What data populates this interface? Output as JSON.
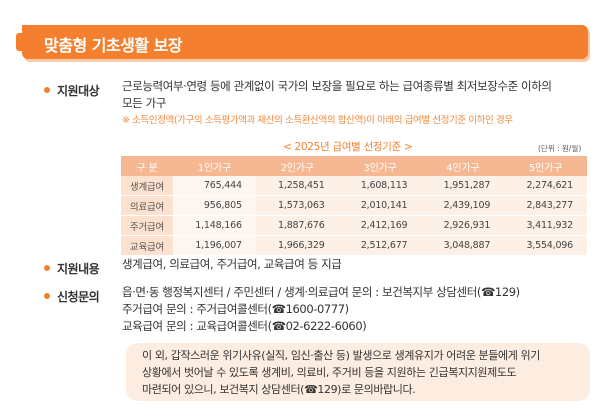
{
  "header": {
    "title": "맞춤형 기초생활 보장"
  },
  "eligibility": {
    "label": "지원대상",
    "text_line1": "근로능력여부·연령 등에 관계없이 국가의 보장을 필요로 하는 급여종류별 최저보장수준 이하의",
    "text_line2": "모든 가구",
    "note": "※ 소득인정액(가구의 소득평가액과 재산의 소득환산액의 합산액)이 아래의 급여별 선정기준 이하인 경우"
  },
  "table": {
    "caption": "< 2025년 급여별 선정기준 >",
    "unit": "(단위 : 원/월)",
    "headers": [
      "구 분",
      "1인가구",
      "2인가구",
      "3인가구",
      "4인가구",
      "5인가구"
    ],
    "rows": [
      {
        "category": "생계급여",
        "values": [
          "765,444",
          "1,258,451",
          "1,608,113",
          "1,951,287",
          "2,274,621"
        ]
      },
      {
        "category": "의료급여",
        "values": [
          "956,805",
          "1,573,063",
          "2,010,141",
          "2,439,109",
          "2,843,277"
        ]
      },
      {
        "category": "주거급여",
        "values": [
          "1,148,166",
          "1,887,676",
          "2,412,169",
          "2,926,931",
          "3,411,932"
        ]
      },
      {
        "category": "교육급여",
        "values": [
          "1,196,007",
          "1,966,329",
          "2,512,677",
          "3,048,887",
          "3,554,096"
        ]
      }
    ]
  },
  "support": {
    "label": "지원내용",
    "text": "생계급여, 의료급여, 주거급여, 교육급여 등 지급"
  },
  "inquiry": {
    "label": "신청문의",
    "line1": "읍·면·동 행정복지센터 / 주민센터 / 생계·의료급여 문의 : 보건복지부 상담센터(☎129)",
    "line2": "주거급여 문의 : 주거급여콜센터(☎1600-0777)",
    "line3": "교육급여 문의 : 교육급여콜센터(☎02-6222-6060)"
  },
  "notice": {
    "line1": "이 외, 갑작스러운 위기사유(실직, 임신·출산 등) 발생으로 생계유지가 어려운 분들에게 위기",
    "line2": "상황에서 벗어날 수 있도록 생계비, 의료비, 주거비 등을 지원하는 긴급복지지원제도도",
    "line3": "마련되어 있으니, 보건복지 상담센터(☎129)로 문의바랍니다."
  }
}
